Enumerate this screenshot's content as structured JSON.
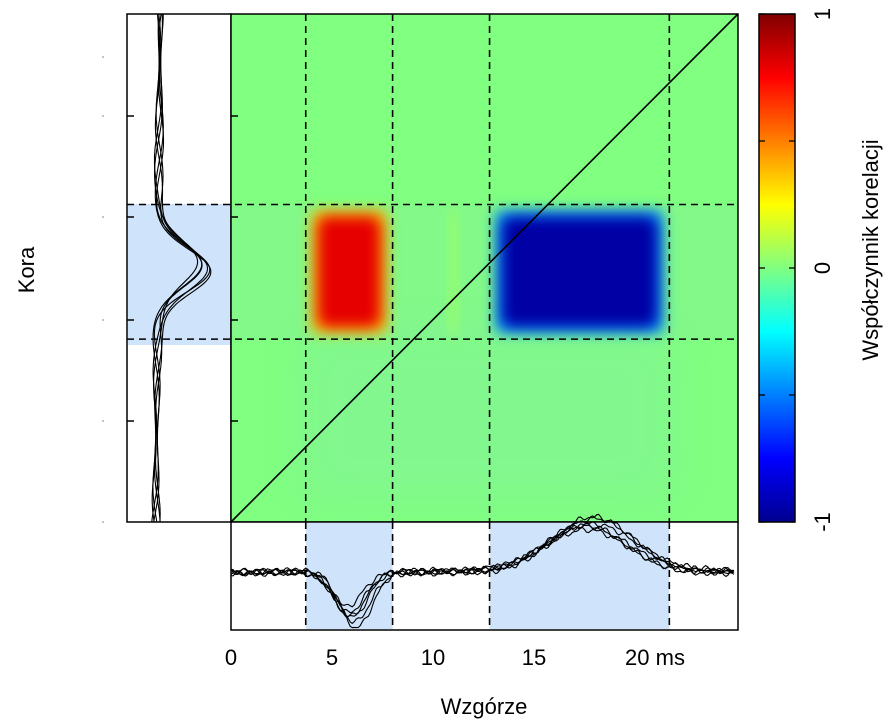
{
  "chart_data": {
    "type": "heatmap",
    "title": "",
    "xlabel": "Wzgórze",
    "ylabel": "Kora",
    "x_unit": "ms",
    "xlim": [
      0,
      25
    ],
    "xticks": [
      0,
      5,
      10,
      15,
      20
    ],
    "x_tick_labels": [
      "0",
      "5",
      "10",
      "15",
      "20 ms"
    ],
    "colorbar": {
      "label": "Współczynnik korelacji",
      "range": [
        -1,
        1
      ],
      "tick_labels": [
        "1",
        "0",
        "-1"
      ],
      "colormap": "jet"
    },
    "diagonal_line": true,
    "grid": false,
    "x_dashed_lines_ms": [
      3.7,
      8.0,
      12.8,
      21.7
    ],
    "y_highlight_band_fraction_from_top": [
      0.375,
      0.64
    ],
    "cells": [
      {
        "x_range_ms": [
          3.7,
          8.0
        ],
        "y_band": "highlight",
        "value": 0.8
      },
      {
        "x_range_ms": [
          12.8,
          21.7
        ],
        "y_band": "highlight",
        "value": -0.95
      },
      {
        "x_range_ms": [
          10.5,
          11.5
        ],
        "y_band": "highlight",
        "value": 0.1
      }
    ],
    "background_value": 0.0,
    "marginal_x": {
      "name": "Wzgórze",
      "highlight_ranges_ms": [
        [
          3.7,
          8.0
        ],
        [
          12.8,
          21.7
        ]
      ],
      "features": [
        {
          "type": "trough",
          "center_ms": 6.0,
          "depth": -0.5
        },
        {
          "type": "peak",
          "center_ms": 17.8,
          "height": 0.55
        }
      ]
    },
    "marginal_y": {
      "name": "Kora",
      "features": [
        {
          "type": "peak",
          "center_fraction_from_top": 0.5,
          "height": 0.55
        }
      ]
    }
  },
  "colors": {
    "neutral": "#80ff80",
    "highlight_band": "#cfe3fb",
    "line": "#000000"
  }
}
